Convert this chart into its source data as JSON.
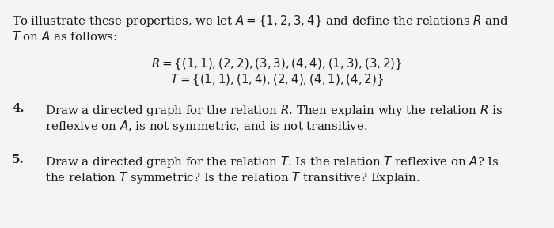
{
  "background_color": "#f5f4f2",
  "text_color": "#1a1a1a",
  "line1": "To illustrate these properties, we let $A = \\{1, 2, 3, 4\\}$ and define the relations $R$ and",
  "line2": "$T$ on $A$ as follows:",
  "R_eq": "$R = \\{(1, 1), (2, 2), (3, 3), (4, 4), (1, 3), (3, 2)\\}$",
  "T_eq": "$T = \\{(1, 1), (1, 4), (2, 4), (4, 1), (4, 2)\\}$",
  "item4_num": "4.",
  "item4_text1": "Draw a directed graph for the relation $R$. Then explain why the relation $R$ is",
  "item4_text2": "reflexive on $A$, is not symmetric, and is not transitive.",
  "item5_num": "5.",
  "item5_text1": "Draw a directed graph for the relation $T$. Is the relation $T$ reflexive on $A$? Is",
  "item5_text2": "the relation $T$ symmetric? Is the relation $T$ transitive? Explain.",
  "font_size": 10.8
}
